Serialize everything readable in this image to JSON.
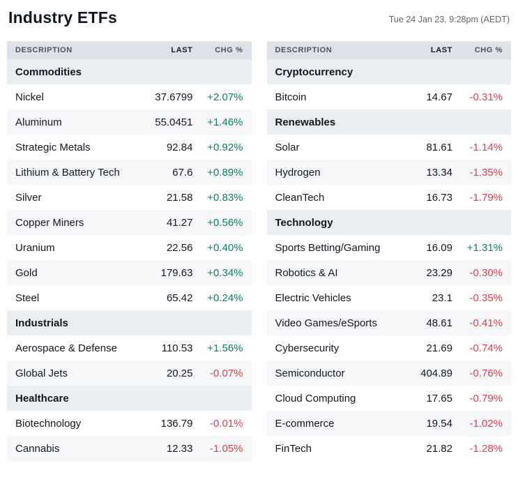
{
  "header": {
    "title": "Industry ETFs",
    "timestamp": "Tue 24 Jan 23, 9:28pm (AEDT)"
  },
  "colors": {
    "positive": "#0b8160",
    "negative": "#dc3e4e",
    "header_bg": "#dde2e9",
    "section_bg": "#eaedf1",
    "alt_row_bg": "#f6f7f9"
  },
  "chart_data": {
    "type": "table",
    "title": "Industry ETFs",
    "columns": [
      "DESCRIPTION",
      "LAST",
      "CHG %"
    ],
    "tables": [
      {
        "sections": [
          {
            "name": "Commodities",
            "rows": [
              [
                "Nickel",
                "37.6799",
                "+2.07%"
              ],
              [
                "Aluminum",
                "55.0451",
                "+1.46%"
              ],
              [
                "Strategic Metals",
                "92.84",
                "+0.92%"
              ],
              [
                "Lithium & Battery Tech",
                "67.6",
                "+0.89%"
              ],
              [
                "Silver",
                "21.58",
                "+0.83%"
              ],
              [
                "Copper Miners",
                "41.27",
                "+0.56%"
              ],
              [
                "Uranium",
                "22.56",
                "+0.40%"
              ],
              [
                "Gold",
                "179.63",
                "+0.34%"
              ],
              [
                "Steel",
                "65.42",
                "+0.24%"
              ]
            ]
          },
          {
            "name": "Industrials",
            "rows": [
              [
                "Aerospace & Defense",
                "110.53",
                "+1.56%"
              ],
              [
                "Global Jets",
                "20.25",
                "-0.07%"
              ]
            ]
          },
          {
            "name": "Healthcare",
            "rows": [
              [
                "Biotechnology",
                "136.79",
                "-0.01%"
              ],
              [
                "Cannabis",
                "12.33",
                "-1.05%"
              ]
            ]
          }
        ]
      },
      {
        "sections": [
          {
            "name": "Cryptocurrency",
            "rows": [
              [
                "Bitcoin",
                "14.67",
                "-0.31%"
              ]
            ]
          },
          {
            "name": "Renewables",
            "rows": [
              [
                "Solar",
                "81.61",
                "-1.14%"
              ],
              [
                "Hydrogen",
                "13.34",
                "-1.35%"
              ],
              [
                "CleanTech",
                "16.73",
                "-1.79%"
              ]
            ]
          },
          {
            "name": "Technology",
            "rows": [
              [
                "Sports Betting/Gaming",
                "16.09",
                "+1.31%"
              ],
              [
                "Robotics & AI",
                "23.29",
                "-0.30%"
              ],
              [
                "Electric Vehicles",
                "23.1",
                "-0.35%"
              ],
              [
                "Video Games/eSports",
                "48.61",
                "-0.41%"
              ],
              [
                "Cybersecurity",
                "21.69",
                "-0.74%"
              ],
              [
                "Semiconductor",
                "404.89",
                "-0.76%"
              ],
              [
                "Cloud Computing",
                "17.65",
                "-0.79%"
              ],
              [
                "E-commerce",
                "19.54",
                "-1.02%"
              ],
              [
                "FinTech",
                "21.82",
                "-1.28%"
              ]
            ]
          }
        ]
      }
    ]
  }
}
